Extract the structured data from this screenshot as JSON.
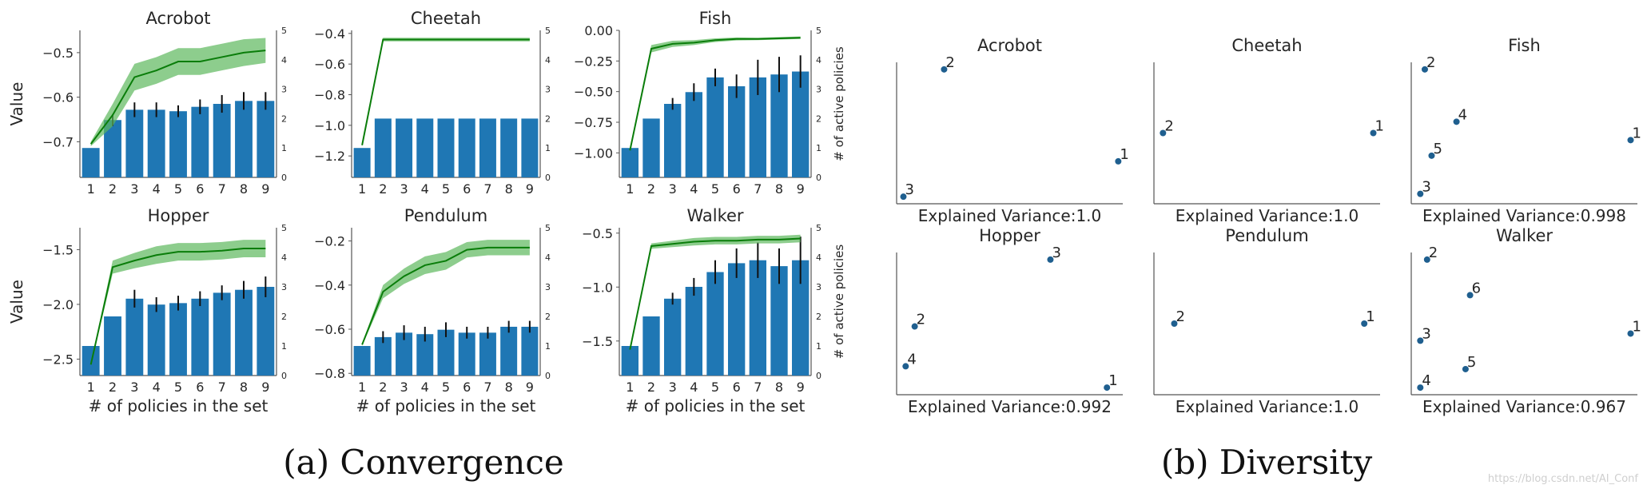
{
  "styles": {
    "bar_color": "#1f77b4",
    "line_color": "#0a7d0a",
    "band_color": "#5cb85c",
    "err_color": "#111111",
    "point_color": "#1f5f8f",
    "axis_color": "#555555"
  },
  "captions": {
    "convergence": "(a) Convergence",
    "diversity": "(b) Diversity"
  },
  "watermark": "https://blog.csdn.net/AI_Conf",
  "chart_data": [
    {
      "type": "bar",
      "title": "Acrobot",
      "xlabel": "",
      "ylabel": "Value",
      "y2label": "",
      "categories": [
        "1",
        "2",
        "3",
        "4",
        "5",
        "6",
        "7",
        "8",
        "9"
      ],
      "ylim": [
        -0.78,
        -0.45
      ],
      "yticks": [
        -0.7,
        -0.6,
        -0.5
      ],
      "ytick_labels": [
        "−0.7",
        "−0.6",
        "−0.5"
      ],
      "y2lim": [
        0,
        5
      ],
      "y2ticks": [
        0,
        1,
        2,
        3,
        4,
        5
      ],
      "bars": [
        1,
        1.95,
        2.3,
        2.3,
        2.25,
        2.4,
        2.5,
        2.6,
        2.6
      ],
      "bar_errors": [
        0,
        0.2,
        0.25,
        0.25,
        0.2,
        0.25,
        0.3,
        0.3,
        0.3
      ],
      "line": [
        -0.705,
        -0.64,
        -0.555,
        -0.54,
        -0.52,
        -0.52,
        -0.51,
        -0.5,
        -0.495
      ],
      "band_width": [
        0.005,
        0.025,
        0.03,
        0.03,
        0.03,
        0.03,
        0.03,
        0.03,
        0.028
      ]
    },
    {
      "type": "bar",
      "title": "Cheetah",
      "xlabel": "",
      "ylabel": "",
      "y2label": "",
      "categories": [
        "1",
        "2",
        "3",
        "4",
        "5",
        "6",
        "7",
        "8",
        "9"
      ],
      "ylim": [
        -1.34,
        -0.38
      ],
      "yticks": [
        -1.2,
        -1.0,
        -0.8,
        -0.6,
        -0.4
      ],
      "ytick_labels": [
        "−1.2",
        "−1.0",
        "−0.8",
        "−0.6",
        "−0.4"
      ],
      "y2lim": [
        0,
        5
      ],
      "y2ticks": [
        0,
        1,
        2,
        3,
        4,
        5
      ],
      "bars": [
        1,
        2,
        2,
        2,
        2,
        2,
        2,
        2,
        2
      ],
      "bar_errors": [
        0,
        0,
        0,
        0,
        0,
        0,
        0,
        0,
        0
      ],
      "line": [
        -1.13,
        -0.44,
        -0.44,
        -0.44,
        -0.44,
        -0.44,
        -0.44,
        -0.44,
        -0.44
      ],
      "band_width": [
        0.003,
        0.012,
        0.012,
        0.012,
        0.012,
        0.012,
        0.012,
        0.012,
        0.012
      ]
    },
    {
      "type": "bar",
      "title": "Fish",
      "xlabel": "",
      "ylabel": "",
      "y2label": "# of active policies",
      "categories": [
        "1",
        "2",
        "3",
        "4",
        "5",
        "6",
        "7",
        "8",
        "9"
      ],
      "ylim": [
        -1.2,
        0.0
      ],
      "yticks": [
        -1.0,
        -0.75,
        -0.5,
        -0.25,
        0.0
      ],
      "ytick_labels": [
        "−1.00",
        "−0.75",
        "−0.50",
        "−0.25",
        "0.00"
      ],
      "y2lim": [
        0,
        5
      ],
      "y2ticks": [
        0,
        1,
        2,
        3,
        4,
        5
      ],
      "bars": [
        1,
        2,
        2.5,
        2.9,
        3.4,
        3.1,
        3.4,
        3.5,
        3.6
      ],
      "bar_errors": [
        0,
        0,
        0.2,
        0.3,
        0.3,
        0.4,
        0.6,
        0.6,
        0.55
      ],
      "line": [
        -0.98,
        -0.15,
        -0.11,
        -0.1,
        -0.08,
        -0.07,
        -0.07,
        -0.065,
        -0.06
      ],
      "band_width": [
        0.003,
        0.03,
        0.025,
        0.02,
        0.015,
        0.012,
        0.01,
        0.01,
        0.01
      ]
    },
    {
      "type": "bar",
      "title": "Hopper",
      "xlabel": "# of policies in the set",
      "ylabel": "Value",
      "y2label": "",
      "categories": [
        "1",
        "2",
        "3",
        "4",
        "5",
        "6",
        "7",
        "8",
        "9"
      ],
      "ylim": [
        -2.65,
        -1.3
      ],
      "yticks": [
        -2.5,
        -2.0,
        -1.5
      ],
      "ytick_labels": [
        "−2.5",
        "−2.0",
        "−1.5"
      ],
      "y2lim": [
        0,
        5
      ],
      "y2ticks": [
        0,
        1,
        2,
        3,
        4,
        5
      ],
      "bars": [
        1,
        2,
        2.6,
        2.4,
        2.45,
        2.6,
        2.8,
        2.9,
        3.0
      ],
      "bar_errors": [
        0,
        0,
        0.3,
        0.25,
        0.25,
        0.25,
        0.25,
        0.3,
        0.35
      ],
      "line": [
        -2.55,
        -1.66,
        -1.6,
        -1.55,
        -1.52,
        -1.52,
        -1.51,
        -1.49,
        -1.49
      ],
      "band_width": [
        0.01,
        0.06,
        0.07,
        0.08,
        0.08,
        0.08,
        0.08,
        0.08,
        0.08
      ]
    },
    {
      "type": "bar",
      "title": "Pendulum",
      "xlabel": "# of policies in the set",
      "ylabel": "",
      "y2label": "",
      "categories": [
        "1",
        "2",
        "3",
        "4",
        "5",
        "6",
        "7",
        "8",
        "9"
      ],
      "ylim": [
        -0.81,
        -0.14
      ],
      "yticks": [
        -0.8,
        -0.6,
        -0.4,
        -0.2
      ],
      "ytick_labels": [
        "−0.8",
        "−0.6",
        "−0.4",
        "−0.2"
      ],
      "y2lim": [
        0,
        5
      ],
      "y2ticks": [
        0,
        1,
        2,
        3,
        4,
        5
      ],
      "bars": [
        1,
        1.3,
        1.45,
        1.4,
        1.55,
        1.45,
        1.45,
        1.65,
        1.65
      ],
      "bar_errors": [
        0,
        0.2,
        0.25,
        0.25,
        0.25,
        0.2,
        0.2,
        0.2,
        0.2
      ],
      "line": [
        -0.67,
        -0.43,
        -0.36,
        -0.31,
        -0.29,
        -0.24,
        -0.23,
        -0.23,
        -0.23
      ],
      "band_width": [
        0.005,
        0.03,
        0.035,
        0.04,
        0.04,
        0.035,
        0.035,
        0.035,
        0.035
      ]
    },
    {
      "type": "bar",
      "title": "Walker",
      "xlabel": "# of policies in the set",
      "ylabel": "",
      "y2label": "# of active policies",
      "categories": [
        "1",
        "2",
        "3",
        "4",
        "5",
        "6",
        "7",
        "8",
        "9"
      ],
      "ylim": [
        -1.82,
        -0.45
      ],
      "yticks": [
        -1.5,
        -1.0,
        -0.5
      ],
      "ytick_labels": [
        "−1.5",
        "−1.0",
        "−0.5"
      ],
      "y2lim": [
        0,
        5
      ],
      "y2ticks": [
        0,
        1,
        2,
        3,
        4,
        5
      ],
      "bars": [
        1,
        2,
        2.6,
        3.0,
        3.5,
        3.8,
        3.9,
        3.7,
        3.9
      ],
      "bar_errors": [
        0,
        0,
        0.2,
        0.3,
        0.4,
        0.5,
        0.6,
        0.6,
        0.8
      ],
      "line": [
        -1.58,
        -0.62,
        -0.6,
        -0.58,
        -0.57,
        -0.57,
        -0.56,
        -0.56,
        -0.55
      ],
      "band_width": [
        0.005,
        0.025,
        0.03,
        0.035,
        0.035,
        0.035,
        0.035,
        0.035,
        0.035
      ]
    },
    {
      "type": "scatter",
      "title": "Acrobot",
      "xlabel": "Explained Variance:1.0",
      "points": [
        {
          "label": "1",
          "x": 0.98,
          "y": 0.3
        },
        {
          "label": "2",
          "x": 0.21,
          "y": 0.95
        },
        {
          "label": "3",
          "x": 0.03,
          "y": 0.05
        }
      ]
    },
    {
      "type": "scatter",
      "title": "Cheetah",
      "xlabel": "Explained Variance:1.0",
      "points": [
        {
          "label": "1",
          "x": 0.97,
          "y": 0.5
        },
        {
          "label": "2",
          "x": 0.04,
          "y": 0.5
        }
      ]
    },
    {
      "type": "scatter",
      "title": "Fish",
      "xlabel": "Explained Variance:0.998",
      "points": [
        {
          "label": "1",
          "x": 0.97,
          "y": 0.45
        },
        {
          "label": "2",
          "x": 0.06,
          "y": 0.95
        },
        {
          "label": "3",
          "x": 0.04,
          "y": 0.07
        },
        {
          "label": "4",
          "x": 0.2,
          "y": 0.58
        },
        {
          "label": "5",
          "x": 0.09,
          "y": 0.34
        }
      ]
    },
    {
      "type": "scatter",
      "title": "Hopper",
      "xlabel": "Explained Variance:0.992",
      "points": [
        {
          "label": "1",
          "x": 0.93,
          "y": 0.05
        },
        {
          "label": "2",
          "x": 0.08,
          "y": 0.48
        },
        {
          "label": "3",
          "x": 0.68,
          "y": 0.95
        },
        {
          "label": "4",
          "x": 0.04,
          "y": 0.2
        }
      ]
    },
    {
      "type": "scatter",
      "title": "Pendulum",
      "xlabel": "Explained Variance:1.0",
      "points": [
        {
          "label": "1",
          "x": 0.93,
          "y": 0.5
        },
        {
          "label": "2",
          "x": 0.09,
          "y": 0.5
        }
      ]
    },
    {
      "type": "scatter",
      "title": "Walker",
      "xlabel": "Explained Variance:0.967",
      "points": [
        {
          "label": "1",
          "x": 0.97,
          "y": 0.43
        },
        {
          "label": "2",
          "x": 0.07,
          "y": 0.95
        },
        {
          "label": "3",
          "x": 0.04,
          "y": 0.38
        },
        {
          "label": "4",
          "x": 0.04,
          "y": 0.05
        },
        {
          "label": "5",
          "x": 0.24,
          "y": 0.18
        },
        {
          "label": "6",
          "x": 0.26,
          "y": 0.7
        }
      ]
    }
  ]
}
